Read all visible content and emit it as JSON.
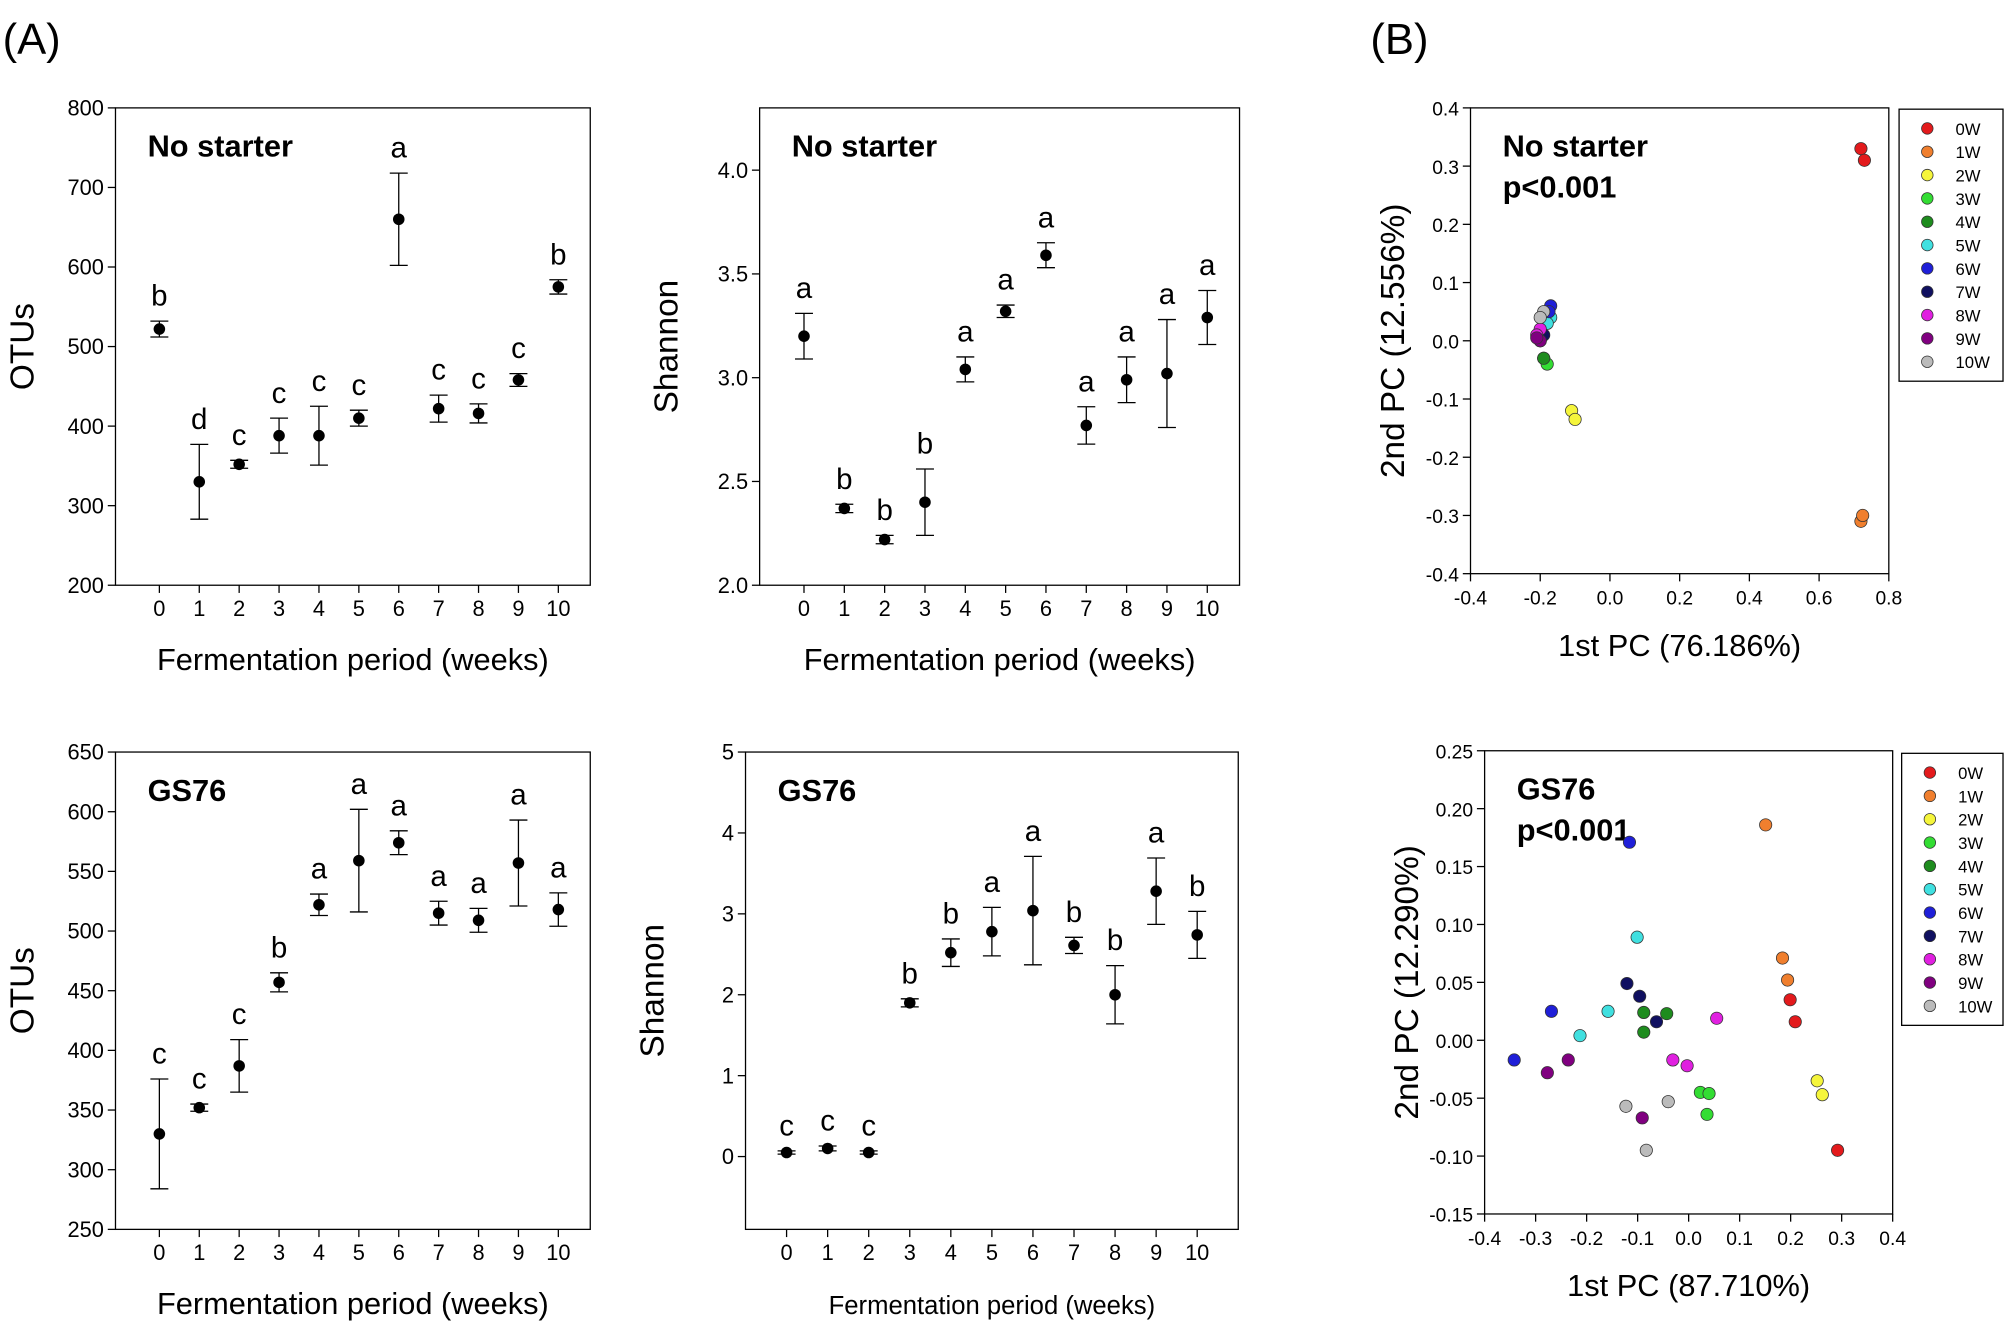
{
  "panel_labels": [
    "(A)",
    "(B)"
  ],
  "chart_data": [
    {
      "type": "errorbar",
      "title": "No starter",
      "xlabel": "Fermentation period (weeks)",
      "ylabel": "OTUs",
      "x": [
        0,
        1,
        2,
        3,
        4,
        5,
        6,
        7,
        8,
        9,
        10
      ],
      "xlim": [
        -1.1,
        10.8
      ],
      "xticks": [
        0,
        1,
        2,
        3,
        4,
        5,
        6,
        7,
        8,
        9,
        10
      ],
      "values": [
        522,
        330,
        352,
        388,
        388,
        410,
        660,
        422,
        416,
        458,
        575
      ],
      "errors": [
        10,
        47,
        5,
        22,
        37,
        10,
        58,
        17,
        12,
        8,
        9
      ],
      "annotations": [
        "b",
        "d",
        "c",
        "c",
        "c",
        "c",
        "a",
        "c",
        "c",
        "c",
        "b"
      ],
      "ylim": [
        200,
        800
      ],
      "yticks": [
        200,
        300,
        400,
        500,
        600,
        700,
        800
      ],
      "color": "#000000"
    },
    {
      "type": "errorbar",
      "title": "No starter",
      "xlabel": "Fermentation period (weeks)",
      "ylabel": "Shannon",
      "x": [
        0,
        1,
        2,
        3,
        4,
        5,
        6,
        7,
        8,
        9,
        10
      ],
      "xlim": [
        -1.1,
        10.8
      ],
      "xticks": [
        0,
        1,
        2,
        3,
        4,
        5,
        6,
        7,
        8,
        9,
        10
      ],
      "values": [
        3.2,
        2.37,
        2.22,
        2.4,
        3.04,
        3.32,
        3.59,
        2.77,
        2.99,
        3.02,
        3.29
      ],
      "errors": [
        0.11,
        0.02,
        0.02,
        0.16,
        0.06,
        0.03,
        0.06,
        0.09,
        0.11,
        0.26,
        0.13
      ],
      "annotations": [
        "a",
        "b",
        "b",
        "b",
        "a",
        "a",
        "a",
        "a",
        "a",
        "a",
        "a"
      ],
      "ylim": [
        2.0,
        4.3
      ],
      "yticks": [
        {
          "value": 2,
          "label": "2.0"
        },
        2.5,
        {
          "value": 3,
          "label": "3.0"
        },
        3.5,
        {
          "value": 4,
          "label": "4.0"
        }
      ],
      "color": "#000000"
    },
    {
      "type": "errorbar",
      "title": "GS76",
      "xlabel": "Fermentation period (weeks)",
      "ylabel": "OTUs",
      "x": [
        0,
        1,
        2,
        3,
        4,
        5,
        6,
        7,
        8,
        9,
        10
      ],
      "xlim": [
        -1.1,
        10.8
      ],
      "xticks": [
        0,
        1,
        2,
        3,
        4,
        5,
        6,
        7,
        8,
        9,
        10
      ],
      "values": [
        330,
        352,
        387,
        457,
        522,
        559,
        574,
        515,
        509,
        557,
        518
      ],
      "errors": [
        46,
        3,
        22,
        8,
        9,
        43,
        10,
        10,
        10,
        36,
        14
      ],
      "annotations": [
        "c",
        "c",
        "c",
        "b",
        "a",
        "a",
        "a",
        "a",
        "a",
        "a",
        "a"
      ],
      "ylim": [
        250,
        650
      ],
      "yticks": [
        250,
        300,
        350,
        400,
        450,
        500,
        550,
        600,
        650
      ],
      "color": "#000000"
    },
    {
      "type": "errorbar",
      "title": "GS76",
      "xlabel": "Fermentation period (weeks)",
      "ylabel": "Shannon",
      "x": [
        0,
        1,
        2,
        3,
        4,
        5,
        6,
        7,
        8,
        9,
        10
      ],
      "xlim": [
        -1,
        11
      ],
      "xticks": [
        0,
        1,
        2,
        3,
        4,
        5,
        6,
        7,
        8,
        9,
        10
      ],
      "values": [
        0.05,
        0.1,
        0.05,
        1.9,
        2.52,
        2.78,
        3.04,
        2.61,
        2.0,
        3.28,
        2.74
      ],
      "errors": [
        0.02,
        0.03,
        0.02,
        0.05,
        0.17,
        0.3,
        0.67,
        0.1,
        0.36,
        0.41,
        0.29
      ],
      "annotations": [
        "c",
        "c",
        "c",
        "b",
        "b",
        "a",
        "a",
        "b",
        "b",
        "a",
        "b"
      ],
      "ylim": [
        -0.9,
        5
      ],
      "yticks": [
        0,
        1,
        2,
        3,
        4,
        5
      ],
      "color": "#000000"
    },
    {
      "type": "scatter",
      "title": "No starter",
      "subtitle": "p<0.001",
      "xlabel": "1st PC (76.186%)",
      "ylabel": "2nd PC (12.556%)",
      "xlim": [
        -0.4,
        0.8
      ],
      "xticks": [
        -0.4,
        -0.2,
        {
          "value": 0,
          "label": "0.0"
        },
        0.2,
        0.4,
        0.6,
        0.8
      ],
      "ylim": [
        -0.4,
        0.4
      ],
      "yticks": [
        -0.4,
        -0.3,
        -0.2,
        -0.1,
        {
          "value": 0,
          "label": "0.0"
        },
        0.1,
        0.2,
        0.3,
        0.4
      ],
      "legend": "outside right",
      "series": [
        {
          "name": "0W",
          "color": "#e31a1c",
          "x": [
            0.72,
            0.73
          ],
          "values": [
            0.33,
            0.31
          ]
        },
        {
          "name": "1W",
          "color": "#f07f2e",
          "x": [
            0.72,
            0.725
          ],
          "values": [
            -0.31,
            -0.3
          ]
        },
        {
          "name": "2W",
          "color": "#f5f53b",
          "x": [
            -0.11,
            -0.1
          ],
          "values": [
            -0.12,
            -0.135
          ]
        },
        {
          "name": "3W",
          "color": "#33dd33",
          "x": [
            -0.19,
            -0.18
          ],
          "values": [
            -0.03,
            -0.04
          ]
        },
        {
          "name": "4W",
          "color": "#1e8c1e",
          "x": [
            -0.19
          ],
          "values": [
            -0.03
          ]
        },
        {
          "name": "5W",
          "color": "#40e0e0",
          "x": [
            -0.17,
            -0.18
          ],
          "values": [
            0.04,
            0.03
          ]
        },
        {
          "name": "6W",
          "color": "#1f1fd8",
          "x": [
            -0.17,
            -0.175
          ],
          "values": [
            0.06,
            0.05
          ]
        },
        {
          "name": "7W",
          "color": "#101060",
          "x": [
            -0.2,
            -0.19
          ],
          "values": [
            0.0,
            0.01
          ]
        },
        {
          "name": "8W",
          "color": "#e020e0",
          "x": [
            -0.2,
            -0.21
          ],
          "values": [
            0.02,
            0.01
          ]
        },
        {
          "name": "9W",
          "color": "#800080",
          "x": [
            -0.2,
            -0.21
          ],
          "values": [
            0.0,
            0.005
          ]
        },
        {
          "name": "10W",
          "color": "#bbbbbb",
          "x": [
            -0.19,
            -0.2
          ],
          "values": [
            0.05,
            0.04
          ]
        }
      ]
    },
    {
      "type": "scatter",
      "title": "GS76",
      "subtitle": "p<0.001",
      "xlabel": "1st PC (87.710%)",
      "ylabel": "2nd PC (12.290%)",
      "xlim": [
        -0.4,
        0.4
      ],
      "xticks": [
        -0.4,
        -0.3,
        -0.2,
        -0.1,
        {
          "value": 0,
          "label": "0.0"
        },
        0.1,
        0.2,
        0.3,
        0.4
      ],
      "ylim": [
        -0.15,
        0.25
      ],
      "yticks": [
        -0.15,
        {
          "value": -0.1,
          "label": "-0.10"
        },
        -0.05,
        {
          "value": 0,
          "label": "0.00"
        },
        0.05,
        {
          "value": 0.1,
          "label": "0.10"
        },
        0.15,
        {
          "value": 0.2,
          "label": "0.20"
        },
        0.25
      ],
      "legend": "outside right",
      "series": [
        {
          "name": "0W",
          "color": "#e31a1c",
          "x": [
            0.199,
            0.209,
            0.292
          ],
          "values": [
            0.035,
            0.016,
            -0.095
          ]
        },
        {
          "name": "1W",
          "color": "#f07f2e",
          "x": [
            0.151,
            0.184,
            0.194
          ],
          "values": [
            0.186,
            0.071,
            0.052
          ]
        },
        {
          "name": "2W",
          "color": "#f5f53b",
          "x": [
            0.252,
            0.262
          ],
          "values": [
            -0.035,
            -0.047
          ]
        },
        {
          "name": "3W",
          "color": "#33dd33",
          "x": [
            0.023,
            0.036,
            0.04
          ],
          "values": [
            -0.045,
            -0.064,
            -0.046
          ]
        },
        {
          "name": "4W",
          "color": "#1e8c1e",
          "x": [
            -0.088,
            -0.043,
            -0.088
          ],
          "values": [
            0.024,
            0.023,
            0.007
          ]
        },
        {
          "name": "5W",
          "color": "#40e0e0",
          "x": [
            -0.101,
            -0.158,
            -0.213
          ],
          "values": [
            0.089,
            0.025,
            0.004
          ]
        },
        {
          "name": "6W",
          "color": "#1f1fd8",
          "x": [
            -0.116,
            -0.269,
            -0.342
          ],
          "values": [
            0.171,
            0.025,
            -0.017
          ]
        },
        {
          "name": "7W",
          "color": "#101060",
          "x": [
            -0.121,
            -0.096,
            -0.063
          ],
          "values": [
            0.049,
            0.038,
            0.016
          ]
        },
        {
          "name": "8W",
          "color": "#e020e0",
          "x": [
            0.055,
            -0.031,
            -0.003
          ],
          "values": [
            0.019,
            -0.017,
            -0.022
          ]
        },
        {
          "name": "9W",
          "color": "#800080",
          "x": [
            -0.236,
            -0.277,
            -0.091
          ],
          "values": [
            -0.017,
            -0.028,
            -0.067
          ]
        },
        {
          "name": "10W",
          "color": "#bbbbbb",
          "x": [
            -0.123,
            -0.04,
            -0.083
          ],
          "values": [
            -0.057,
            -0.053,
            -0.095
          ]
        }
      ]
    }
  ]
}
